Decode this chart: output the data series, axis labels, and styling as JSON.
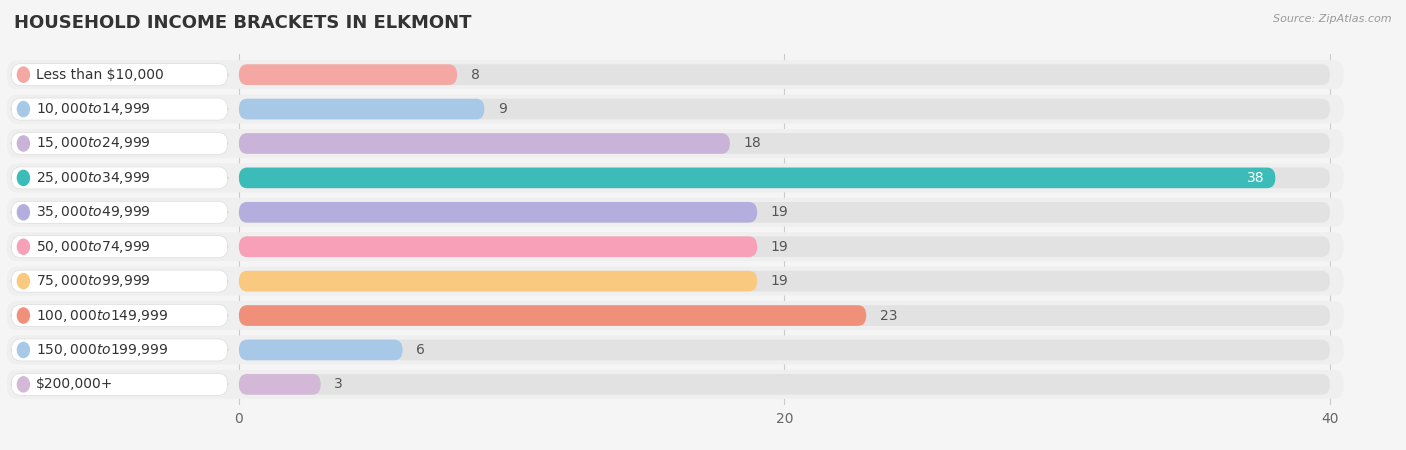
{
  "title": "HOUSEHOLD INCOME BRACKETS IN ELKMONT",
  "source": "Source: ZipAtlas.com",
  "categories": [
    "Less than $10,000",
    "$10,000 to $14,999",
    "$15,000 to $24,999",
    "$25,000 to $34,999",
    "$35,000 to $49,999",
    "$50,000 to $74,999",
    "$75,000 to $99,999",
    "$100,000 to $149,999",
    "$150,000 to $199,999",
    "$200,000+"
  ],
  "values": [
    8,
    9,
    18,
    38,
    19,
    19,
    19,
    23,
    6,
    3
  ],
  "bar_colors": [
    "#f4a7a3",
    "#a8c8e8",
    "#c9b3d9",
    "#3bbcb8",
    "#b3aedd",
    "#f8a0b8",
    "#f9c980",
    "#f0907a",
    "#a8c8e8",
    "#d4b8d8"
  ],
  "xlim_data": [
    0,
    40
  ],
  "xticks": [
    0,
    20,
    40
  ],
  "background_color": "#f5f5f5",
  "row_bg_color": "#efefef",
  "bar_bg_color": "#e2e2e2",
  "title_fontsize": 13,
  "label_fontsize": 10,
  "value_fontsize": 10
}
